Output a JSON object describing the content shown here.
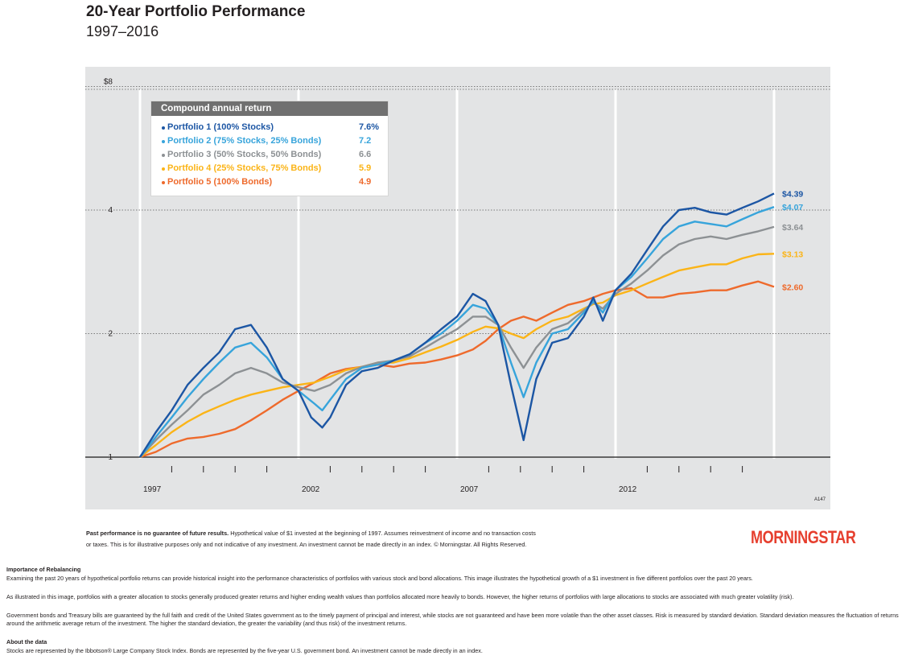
{
  "header": {
    "title": "20-Year Portfolio Performance",
    "subtitle": "1997–2016"
  },
  "chart_data": {
    "type": "line",
    "x_range": [
      1997,
      2017
    ],
    "y_scale": "log",
    "ylim": [
      1,
      8.8
    ],
    "y_ticks": [
      {
        "value": 1,
        "label": "1"
      },
      {
        "value": 2,
        "label": "2"
      },
      {
        "value": 4,
        "label": "4"
      },
      {
        "value": 8,
        "label": "$8"
      }
    ],
    "x_tick_labels": [
      {
        "value": 1997,
        "label": "1997"
      },
      {
        "value": 2002,
        "label": "2002"
      },
      {
        "value": 2007,
        "label": "2007"
      },
      {
        "value": 2012,
        "label": "2012"
      }
    ],
    "figure_code": "A147",
    "grid": true,
    "legend_title": "Compound annual return",
    "legend_position": "top-left",
    "series": [
      {
        "name": "Portfolio 1 (100% Stocks)",
        "return": "7.6%",
        "end_label": "$4.39",
        "color": "#1c56a4",
        "points": [
          [
            1997,
            1
          ],
          [
            1997.5,
            1.15
          ],
          [
            1998,
            1.3
          ],
          [
            1998.5,
            1.5
          ],
          [
            1999,
            1.65
          ],
          [
            1999.5,
            1.8
          ],
          [
            2000,
            2.05
          ],
          [
            2000.5,
            2.1
          ],
          [
            2001,
            1.85
          ],
          [
            2001.5,
            1.55
          ],
          [
            2002,
            1.45
          ],
          [
            2002.4,
            1.25
          ],
          [
            2002.75,
            1.18
          ],
          [
            2003,
            1.25
          ],
          [
            2003.5,
            1.5
          ],
          [
            2004,
            1.62
          ],
          [
            2004.5,
            1.65
          ],
          [
            2005,
            1.72
          ],
          [
            2005.5,
            1.78
          ],
          [
            2006,
            1.9
          ],
          [
            2006.5,
            2.05
          ],
          [
            2007,
            2.2
          ],
          [
            2007.5,
            2.5
          ],
          [
            2007.9,
            2.4
          ],
          [
            2008.3,
            2.1
          ],
          [
            2008.7,
            1.5
          ],
          [
            2009.1,
            1.1
          ],
          [
            2009.5,
            1.55
          ],
          [
            2010,
            1.9
          ],
          [
            2010.5,
            1.95
          ],
          [
            2011,
            2.2
          ],
          [
            2011.3,
            2.45
          ],
          [
            2011.6,
            2.15
          ],
          [
            2012,
            2.55
          ],
          [
            2012.5,
            2.8
          ],
          [
            2013,
            3.2
          ],
          [
            2013.5,
            3.65
          ],
          [
            2014,
            4.0
          ],
          [
            2014.5,
            4.05
          ],
          [
            2015,
            3.95
          ],
          [
            2015.5,
            3.9
          ],
          [
            2016,
            4.05
          ],
          [
            2016.5,
            4.2
          ],
          [
            2017,
            4.39
          ]
        ]
      },
      {
        "name": "Portfolio 2 (75% Stocks, 25% Bonds)",
        "return": "7.2",
        "end_label": "$4.07",
        "color": "#37a4db",
        "points": [
          [
            1997,
            1
          ],
          [
            1997.5,
            1.12
          ],
          [
            1998,
            1.25
          ],
          [
            1998.5,
            1.4
          ],
          [
            1999,
            1.55
          ],
          [
            1999.5,
            1.7
          ],
          [
            2000,
            1.85
          ],
          [
            2000.5,
            1.9
          ],
          [
            2001,
            1.75
          ],
          [
            2001.5,
            1.55
          ],
          [
            2002,
            1.45
          ],
          [
            2002.5,
            1.35
          ],
          [
            2002.75,
            1.3
          ],
          [
            2003,
            1.38
          ],
          [
            2003.5,
            1.55
          ],
          [
            2004,
            1.65
          ],
          [
            2004.5,
            1.68
          ],
          [
            2005,
            1.72
          ],
          [
            2005.5,
            1.78
          ],
          [
            2006,
            1.9
          ],
          [
            2006.5,
            2.0
          ],
          [
            2007,
            2.15
          ],
          [
            2007.5,
            2.35
          ],
          [
            2007.9,
            2.3
          ],
          [
            2008.3,
            2.1
          ],
          [
            2008.7,
            1.7
          ],
          [
            2009.1,
            1.4
          ],
          [
            2009.5,
            1.7
          ],
          [
            2010,
            2.0
          ],
          [
            2010.5,
            2.05
          ],
          [
            2011,
            2.25
          ],
          [
            2011.3,
            2.4
          ],
          [
            2011.6,
            2.25
          ],
          [
            2012,
            2.55
          ],
          [
            2012.5,
            2.75
          ],
          [
            2013,
            3.05
          ],
          [
            2013.5,
            3.4
          ],
          [
            2014,
            3.65
          ],
          [
            2014.5,
            3.75
          ],
          [
            2015,
            3.7
          ],
          [
            2015.5,
            3.65
          ],
          [
            2016,
            3.8
          ],
          [
            2016.5,
            3.95
          ],
          [
            2017,
            4.07
          ]
        ]
      },
      {
        "name": "Portfolio 3 (50% Stocks, 50% Bonds)",
        "return": "6.6",
        "end_label": "$3.64",
        "color": "#8d9194",
        "points": [
          [
            1997,
            1
          ],
          [
            1997.5,
            1.1
          ],
          [
            1998,
            1.2
          ],
          [
            1998.5,
            1.3
          ],
          [
            1999,
            1.42
          ],
          [
            1999.5,
            1.5
          ],
          [
            2000,
            1.6
          ],
          [
            2000.5,
            1.65
          ],
          [
            2001,
            1.6
          ],
          [
            2001.5,
            1.52
          ],
          [
            2002,
            1.48
          ],
          [
            2002.5,
            1.45
          ],
          [
            2003,
            1.5
          ],
          [
            2003.5,
            1.6
          ],
          [
            2004,
            1.66
          ],
          [
            2004.5,
            1.7
          ],
          [
            2005,
            1.72
          ],
          [
            2005.5,
            1.76
          ],
          [
            2006,
            1.85
          ],
          [
            2006.5,
            1.95
          ],
          [
            2007,
            2.05
          ],
          [
            2007.5,
            2.2
          ],
          [
            2007.9,
            2.2
          ],
          [
            2008.3,
            2.1
          ],
          [
            2008.7,
            1.85
          ],
          [
            2009.1,
            1.65
          ],
          [
            2009.5,
            1.85
          ],
          [
            2010,
            2.05
          ],
          [
            2010.5,
            2.12
          ],
          [
            2011,
            2.28
          ],
          [
            2011.3,
            2.38
          ],
          [
            2011.6,
            2.3
          ],
          [
            2012,
            2.5
          ],
          [
            2012.5,
            2.65
          ],
          [
            2013,
            2.85
          ],
          [
            2013.5,
            3.1
          ],
          [
            2014,
            3.3
          ],
          [
            2014.5,
            3.4
          ],
          [
            2015,
            3.45
          ],
          [
            2015.5,
            3.4
          ],
          [
            2016,
            3.48
          ],
          [
            2016.5,
            3.55
          ],
          [
            2017,
            3.64
          ]
        ]
      },
      {
        "name": "Portfolio 4 (25% Stocks, 75% Bonds)",
        "return": "5.9",
        "end_label": "$3.13",
        "color": "#fbb417",
        "points": [
          [
            1997,
            1
          ],
          [
            1997.5,
            1.07
          ],
          [
            1998,
            1.15
          ],
          [
            1998.5,
            1.22
          ],
          [
            1999,
            1.28
          ],
          [
            1999.5,
            1.33
          ],
          [
            2000,
            1.38
          ],
          [
            2000.5,
            1.42
          ],
          [
            2001,
            1.45
          ],
          [
            2001.5,
            1.48
          ],
          [
            2002,
            1.5
          ],
          [
            2002.5,
            1.52
          ],
          [
            2003,
            1.57
          ],
          [
            2003.5,
            1.63
          ],
          [
            2004,
            1.66
          ],
          [
            2004.5,
            1.7
          ],
          [
            2005,
            1.7
          ],
          [
            2005.5,
            1.74
          ],
          [
            2006,
            1.8
          ],
          [
            2006.5,
            1.86
          ],
          [
            2007,
            1.93
          ],
          [
            2007.5,
            2.02
          ],
          [
            2007.9,
            2.08
          ],
          [
            2008.3,
            2.06
          ],
          [
            2008.7,
            2.0
          ],
          [
            2009.1,
            1.95
          ],
          [
            2009.5,
            2.05
          ],
          [
            2010,
            2.15
          ],
          [
            2010.5,
            2.2
          ],
          [
            2011,
            2.3
          ],
          [
            2011.3,
            2.36
          ],
          [
            2011.6,
            2.38
          ],
          [
            2012,
            2.48
          ],
          [
            2012.5,
            2.55
          ],
          [
            2013,
            2.65
          ],
          [
            2013.5,
            2.75
          ],
          [
            2014,
            2.85
          ],
          [
            2014.5,
            2.9
          ],
          [
            2015,
            2.95
          ],
          [
            2015.5,
            2.95
          ],
          [
            2016,
            3.05
          ],
          [
            2016.5,
            3.12
          ],
          [
            2017,
            3.13
          ]
        ]
      },
      {
        "name": "Portfolio 5 (100% Bonds)",
        "return": "4.9",
        "end_label": "$2.60",
        "color": "#ee6a2c",
        "points": [
          [
            1997,
            1
          ],
          [
            1997.5,
            1.03
          ],
          [
            1998,
            1.08
          ],
          [
            1998.5,
            1.11
          ],
          [
            1999,
            1.12
          ],
          [
            1999.5,
            1.14
          ],
          [
            2000,
            1.17
          ],
          [
            2000.5,
            1.23
          ],
          [
            2001,
            1.3
          ],
          [
            2001.5,
            1.38
          ],
          [
            2002,
            1.45
          ],
          [
            2002.5,
            1.52
          ],
          [
            2003,
            1.6
          ],
          [
            2003.5,
            1.64
          ],
          [
            2004,
            1.66
          ],
          [
            2004.5,
            1.68
          ],
          [
            2005,
            1.66
          ],
          [
            2005.5,
            1.69
          ],
          [
            2006,
            1.7
          ],
          [
            2006.5,
            1.73
          ],
          [
            2007,
            1.77
          ],
          [
            2007.5,
            1.83
          ],
          [
            2007.9,
            1.92
          ],
          [
            2008.3,
            2.05
          ],
          [
            2008.7,
            2.15
          ],
          [
            2009.1,
            2.2
          ],
          [
            2009.5,
            2.15
          ],
          [
            2010,
            2.25
          ],
          [
            2010.5,
            2.35
          ],
          [
            2011,
            2.4
          ],
          [
            2011.3,
            2.45
          ],
          [
            2011.6,
            2.5
          ],
          [
            2012,
            2.55
          ],
          [
            2012.5,
            2.58
          ],
          [
            2013,
            2.45
          ],
          [
            2013.5,
            2.45
          ],
          [
            2014,
            2.5
          ],
          [
            2014.5,
            2.52
          ],
          [
            2015,
            2.55
          ],
          [
            2015.5,
            2.55
          ],
          [
            2016,
            2.62
          ],
          [
            2016.5,
            2.68
          ],
          [
            2017,
            2.6
          ]
        ]
      }
    ]
  },
  "disclaimer": {
    "bold": "Past performance is no guarantee of future results.",
    "line1_rest": " Hypothetical value of $1 invested at the beginning of 1997. Assumes reinvestment of income and no transaction costs",
    "line2": "or taxes. This is for illustrative purposes only and not indicative of any investment. An investment cannot be made directly in an index. © Morningstar. All Rights Reserved."
  },
  "logo": "MORNINGSTAR",
  "notes": {
    "rebal_heading": "Importance of Rebalancing",
    "rebal_p1": "Examining the past 20 years of hypothetical portfolio returns can provide historical insight into the performance characteristics of portfolios with various stock and bond allocations. This image illustrates the hypothetical growth of a $1 investment in five different portfolios over the past 20 years.",
    "rebal_p2": "As illustrated in this image, portfolios with a greater allocation to stocks generally produced greater returns and higher ending wealth values than portfolios allocated more heavily to bonds. However, the higher returns of portfolios with large allocations to stocks are associated with much greater volatility (risk).",
    "rebal_p3": "Government bonds and Treasury bills are guaranteed by the full faith and credit of the United States government as to the timely payment of principal and interest, while stocks are not guaranteed and have been more volatile than the other asset classes. Risk is measured by standard deviation. Standard deviation measures the fluctuation of returns around the arithmetic average return of the investment. The higher the standard deviation, the greater the variability (and thus risk) of the investment returns.",
    "data_heading": "About the data",
    "data_p": "Stocks are represented by the Ibbotson® Large Company Stock Index. Bonds are represented by the five-year U.S. government bond. An investment cannot be made directly in an index."
  }
}
